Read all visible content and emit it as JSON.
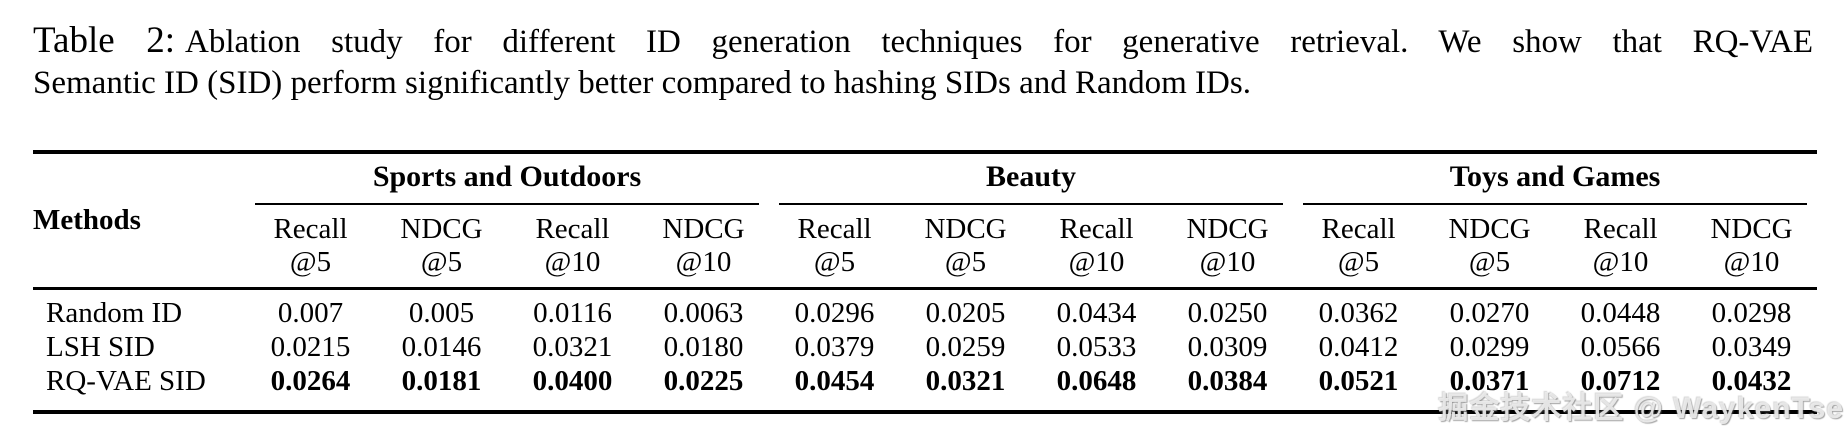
{
  "caption": {
    "tag": "Table 2:",
    "line1": "Ablation study for different ID generation techniques for generative retrieval. We show that RQ-VAE",
    "line2": "Semantic ID (SID) perform significantly better compared to hashing SIDs and Random IDs."
  },
  "table": {
    "methods_header": "Methods",
    "groups": [
      {
        "label": "Sports and Outdoors"
      },
      {
        "label": "Beauty"
      },
      {
        "label": "Toys and Games"
      }
    ],
    "metric_cols": [
      {
        "line1": "Recall",
        "line2": "@5"
      },
      {
        "line1": "NDCG",
        "line2": "@5"
      },
      {
        "line1": "Recall",
        "line2": "@10"
      },
      {
        "line1": "NDCG",
        "line2": "@10"
      }
    ],
    "rows": [
      {
        "method": "Random ID",
        "values": [
          "0.007",
          "0.005",
          "0.0116",
          "0.0063",
          "0.0296",
          "0.0205",
          "0.0434",
          "0.0250",
          "0.0362",
          "0.0270",
          "0.0448",
          "0.0298"
        ]
      },
      {
        "method": "LSH SID",
        "values": [
          "0.0215",
          "0.0146",
          "0.0321",
          "0.0180",
          "0.0379",
          "0.0259",
          "0.0533",
          "0.0309",
          "0.0412",
          "0.0299",
          "0.0566",
          "0.0349"
        ]
      },
      {
        "method": "RQ-VAE SID",
        "values": [
          "0.0264",
          "0.0181",
          "0.0400",
          "0.0225",
          "0.0454",
          "0.0321",
          "0.0648",
          "0.0384",
          "0.0521",
          "0.0371",
          "0.0712",
          "0.0432"
        ]
      }
    ]
  },
  "watermark": "掘金技术社区 @ WaykenTse",
  "colors": {
    "text": "#000000",
    "background": "#ffffff",
    "rule": "#000000",
    "watermark": "#ececec"
  }
}
